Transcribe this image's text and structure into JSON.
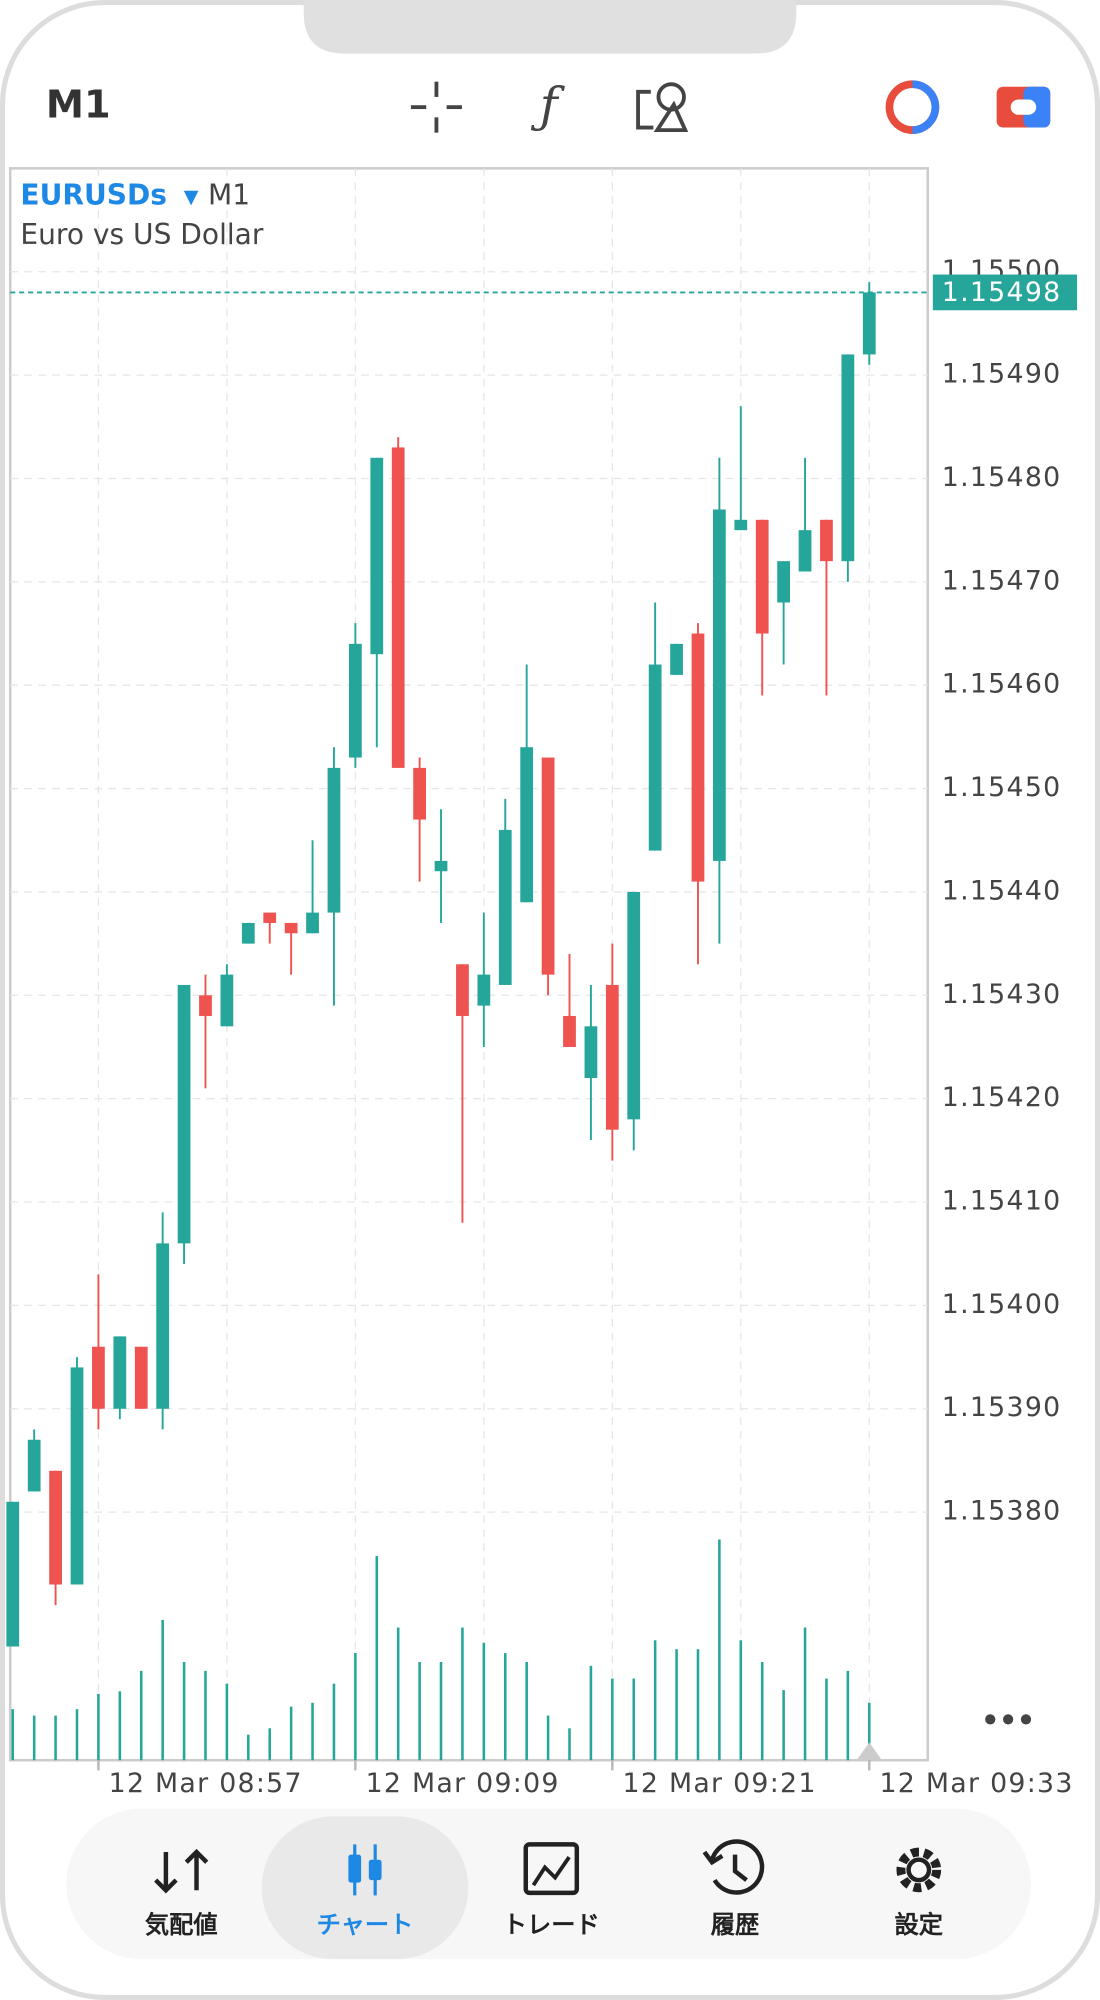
{
  "header": {
    "timeframe": "M1"
  },
  "chart_data": {
    "type": "candlestick",
    "symbol": "EURUSDs",
    "timeframe": "M1",
    "description": "Euro vs US Dollar",
    "categories": [
      null,
      null,
      null,
      null,
      "12 Mar 08:57",
      null,
      null,
      null,
      null,
      null,
      null,
      null,
      null,
      null,
      null,
      null,
      "12 Mar 09:09",
      null,
      null,
      null,
      null,
      null,
      null,
      null,
      null,
      null,
      null,
      null,
      "12 Mar 09:21",
      null,
      null,
      null,
      null,
      null,
      null,
      null,
      null,
      null,
      null,
      null,
      "12 Mar 09:33"
    ],
    "open": [
      1.15367,
      1.15382,
      1.15384,
      1.15373,
      1.15396,
      1.1539,
      1.15396,
      1.1539,
      1.15406,
      1.1543,
      1.15427,
      1.15435,
      1.15438,
      1.15437,
      1.15436,
      1.15438,
      1.15453,
      1.15463,
      1.15483,
      1.15452,
      1.15442,
      1.15433,
      1.15429,
      1.15431,
      1.15439,
      1.15453,
      1.15428,
      1.15422,
      1.15431,
      1.15418,
      1.15444,
      1.15461,
      1.15465,
      1.15443,
      1.15475,
      1.15476,
      1.15468,
      1.15471,
      1.15476,
      1.15472,
      1.15492
    ],
    "high": [
      1.15381,
      1.15388,
      1.15384,
      1.15395,
      1.15403,
      1.15397,
      1.15396,
      1.15409,
      1.15431,
      1.15432,
      1.15433,
      1.15437,
      1.15438,
      1.15437,
      1.15445,
      1.15454,
      1.15466,
      1.15482,
      1.15484,
      1.15453,
      1.15448,
      1.15433,
      1.15438,
      1.15449,
      1.15462,
      1.15453,
      1.15434,
      1.15431,
      1.15435,
      1.1544,
      1.15468,
      1.15464,
      1.15466,
      1.15482,
      1.15487,
      1.15476,
      1.15472,
      1.15482,
      1.15476,
      1.15492,
      1.15499
    ],
    "low": [
      1.15367,
      1.15382,
      1.15371,
      1.15373,
      1.15388,
      1.15389,
      1.1539,
      1.15388,
      1.15404,
      1.15421,
      1.15427,
      1.15435,
      1.15435,
      1.15432,
      1.15436,
      1.15429,
      1.15452,
      1.15454,
      1.15452,
      1.15441,
      1.15437,
      1.15408,
      1.15425,
      1.15431,
      1.15439,
      1.1543,
      1.15425,
      1.15416,
      1.15414,
      1.15415,
      1.15444,
      1.15461,
      1.15433,
      1.15435,
      1.15475,
      1.15459,
      1.15462,
      1.15471,
      1.15459,
      1.1547,
      1.15491
    ],
    "close": [
      1.15381,
      1.15387,
      1.15373,
      1.15394,
      1.1539,
      1.15397,
      1.1539,
      1.15406,
      1.15431,
      1.15428,
      1.15432,
      1.15437,
      1.15437,
      1.15436,
      1.15438,
      1.15452,
      1.15464,
      1.15482,
      1.15452,
      1.15447,
      1.15443,
      1.15428,
      1.15432,
      1.15446,
      1.15454,
      1.15432,
      1.15425,
      1.15427,
      1.15417,
      1.1544,
      1.15462,
      1.15464,
      1.15441,
      1.15477,
      1.15476,
      1.15465,
      1.15472,
      1.15475,
      1.15472,
      1.15492,
      1.15498
    ],
    "volume": [
      40,
      35,
      35,
      40,
      52,
      54,
      70,
      110,
      77,
      70,
      60,
      20,
      25,
      42,
      45,
      60,
      84,
      160,
      104,
      77,
      77,
      104,
      92,
      84,
      77,
      35,
      25,
      74,
      64,
      64,
      94,
      87,
      87,
      173,
      94,
      77,
      55,
      104,
      64,
      70,
      45
    ],
    "vlim": [
      0,
      400
    ],
    "up_color": "#26a69a",
    "down_color": "#ef5350",
    "volume_color": "#26a69a",
    "current_price": 1.15498,
    "ylim": [
      1.15356,
      1.1551
    ],
    "yticks": [
      {
        "value": 1.1538,
        "label": "1.15380"
      },
      {
        "value": 1.1539,
        "label": "1.15390"
      },
      {
        "value": 1.154,
        "label": "1.15400"
      },
      {
        "value": 1.1541,
        "label": "1.15410"
      },
      {
        "value": 1.1542,
        "label": "1.15420"
      },
      {
        "value": 1.1543,
        "label": "1.15430"
      },
      {
        "value": 1.1544,
        "label": "1.15440"
      },
      {
        "value": 1.1545,
        "label": "1.15450"
      },
      {
        "value": 1.1546,
        "label": "1.15460"
      },
      {
        "value": 1.1547,
        "label": "1.15470"
      },
      {
        "value": 1.1548,
        "label": "1.15480"
      },
      {
        "value": 1.1549,
        "label": "1.15490"
      },
      {
        "value": 1.155,
        "label": "1.15500"
      }
    ],
    "grid": true
  },
  "nav": {
    "items": [
      "気配値",
      "チャート",
      "トレード",
      "履歴",
      "設定"
    ],
    "active": 1
  }
}
